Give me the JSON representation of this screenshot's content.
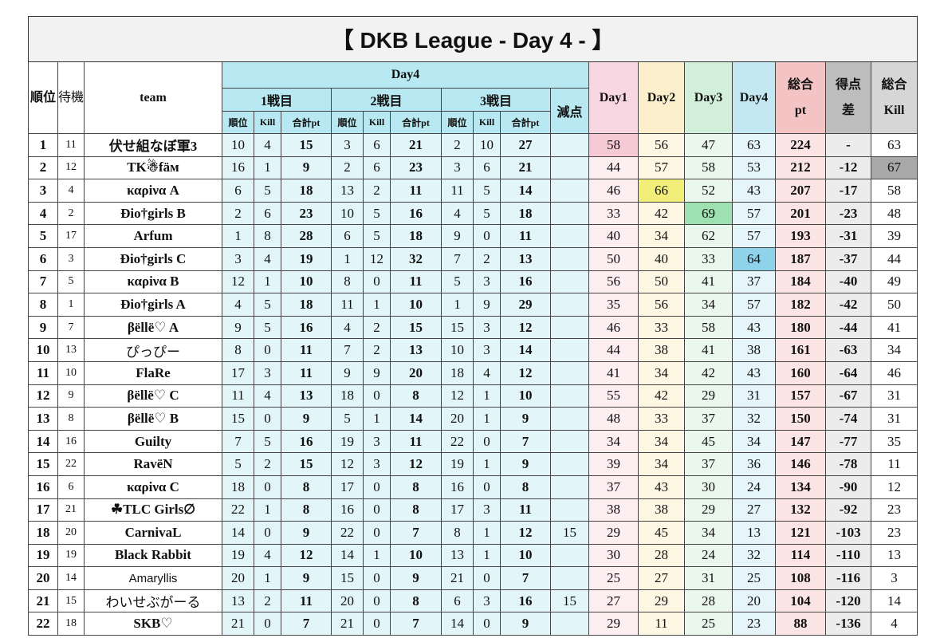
{
  "title": "【 DKB  League - Day 4 - 】",
  "header": {
    "rank": "順位",
    "wait": "待機",
    "team": "team",
    "day4": "Day4",
    "matches": [
      "1戦目",
      "2戦目",
      "3戦目"
    ],
    "penalty": "減点",
    "sub": [
      "順位",
      "Kill",
      "合計pt"
    ],
    "days": [
      "Day1",
      "Day2",
      "Day3",
      "Day4"
    ],
    "total": "総合pt",
    "diff": "得点差",
    "total_kill": "総合Kill"
  },
  "rows": [
    [
      1,
      11,
      "伏せ組なぼ軍3",
      10,
      4,
      15,
      3,
      6,
      21,
      2,
      10,
      27,
      null,
      58,
      56,
      47,
      63,
      224,
      "-",
      63
    ],
    [
      2,
      12,
      "TK☃fäм",
      16,
      1,
      9,
      2,
      6,
      23,
      3,
      6,
      21,
      null,
      44,
      57,
      58,
      53,
      212,
      -12,
      67
    ],
    [
      3,
      4,
      "καρiνα A",
      6,
      5,
      18,
      13,
      2,
      11,
      11,
      5,
      14,
      null,
      46,
      66,
      52,
      43,
      207,
      -17,
      58
    ],
    [
      4,
      2,
      "Ðio†girls B",
      2,
      6,
      23,
      10,
      5,
      16,
      4,
      5,
      18,
      null,
      33,
      42,
      69,
      57,
      201,
      -23,
      48
    ],
    [
      5,
      17,
      "Arfum",
      1,
      8,
      28,
      6,
      5,
      18,
      9,
      0,
      11,
      null,
      40,
      34,
      62,
      57,
      193,
      -31,
      39
    ],
    [
      6,
      3,
      "Ðio†girls C",
      3,
      4,
      19,
      1,
      12,
      32,
      7,
      2,
      13,
      null,
      50,
      40,
      33,
      64,
      187,
      -37,
      44
    ],
    [
      7,
      5,
      "καρiνα B",
      12,
      1,
      10,
      8,
      0,
      11,
      5,
      3,
      16,
      null,
      56,
      50,
      41,
      37,
      184,
      -40,
      49
    ],
    [
      8,
      1,
      "Ðio†girls A",
      4,
      5,
      18,
      11,
      1,
      10,
      1,
      9,
      29,
      null,
      35,
      56,
      34,
      57,
      182,
      -42,
      50
    ],
    [
      9,
      7,
      "βëllë♡ A",
      9,
      5,
      16,
      4,
      2,
      15,
      15,
      3,
      12,
      null,
      46,
      33,
      58,
      43,
      180,
      -44,
      41
    ],
    [
      10,
      13,
      "ぴっぴー",
      8,
      0,
      11,
      7,
      2,
      13,
      10,
      3,
      14,
      null,
      44,
      38,
      41,
      38,
      161,
      -63,
      34
    ],
    [
      11,
      10,
      "FlaRe",
      17,
      3,
      11,
      9,
      9,
      20,
      18,
      4,
      12,
      null,
      41,
      34,
      42,
      43,
      160,
      -64,
      46
    ],
    [
      12,
      9,
      "βëllë♡ C",
      11,
      4,
      13,
      18,
      0,
      8,
      12,
      1,
      10,
      null,
      55,
      42,
      29,
      31,
      157,
      -67,
      31
    ],
    [
      13,
      8,
      "βëllë♡ B",
      15,
      0,
      9,
      5,
      1,
      14,
      20,
      1,
      9,
      null,
      48,
      33,
      37,
      32,
      150,
      -74,
      31
    ],
    [
      14,
      16,
      "Guilty",
      7,
      5,
      16,
      19,
      3,
      11,
      22,
      0,
      7,
      null,
      34,
      34,
      45,
      34,
      147,
      -77,
      35
    ],
    [
      15,
      22,
      "RavëN",
      5,
      2,
      15,
      12,
      3,
      12,
      19,
      1,
      9,
      null,
      39,
      34,
      37,
      36,
      146,
      -78,
      11
    ],
    [
      16,
      6,
      "καρiνα C",
      18,
      0,
      8,
      17,
      0,
      8,
      16,
      0,
      8,
      null,
      37,
      43,
      30,
      24,
      134,
      -90,
      12
    ],
    [
      17,
      21,
      "☘TLC Girls∅",
      22,
      1,
      8,
      16,
      0,
      8,
      17,
      3,
      11,
      null,
      38,
      38,
      29,
      27,
      132,
      -92,
      23
    ],
    [
      18,
      20,
      "CarnivaL",
      14,
      0,
      9,
      22,
      0,
      7,
      8,
      1,
      12,
      15,
      29,
      45,
      34,
      13,
      121,
      -103,
      23
    ],
    [
      19,
      19,
      "Black Rabbit",
      19,
      4,
      12,
      14,
      1,
      10,
      13,
      1,
      10,
      null,
      30,
      28,
      24,
      32,
      114,
      -110,
      13
    ],
    [
      20,
      14,
      "Amaryllis",
      20,
      1,
      9,
      15,
      0,
      9,
      21,
      0,
      7,
      null,
      25,
      27,
      31,
      25,
      108,
      -116,
      3
    ],
    [
      21,
      15,
      "わいせぶがーる",
      13,
      2,
      11,
      20,
      0,
      8,
      6,
      3,
      16,
      15,
      27,
      29,
      28,
      20,
      104,
      -120,
      14
    ],
    [
      22,
      18,
      "SKB♡",
      21,
      0,
      7,
      21,
      0,
      7,
      14,
      0,
      9,
      null,
      29,
      11,
      25,
      23,
      88,
      -136,
      4
    ]
  ]
}
